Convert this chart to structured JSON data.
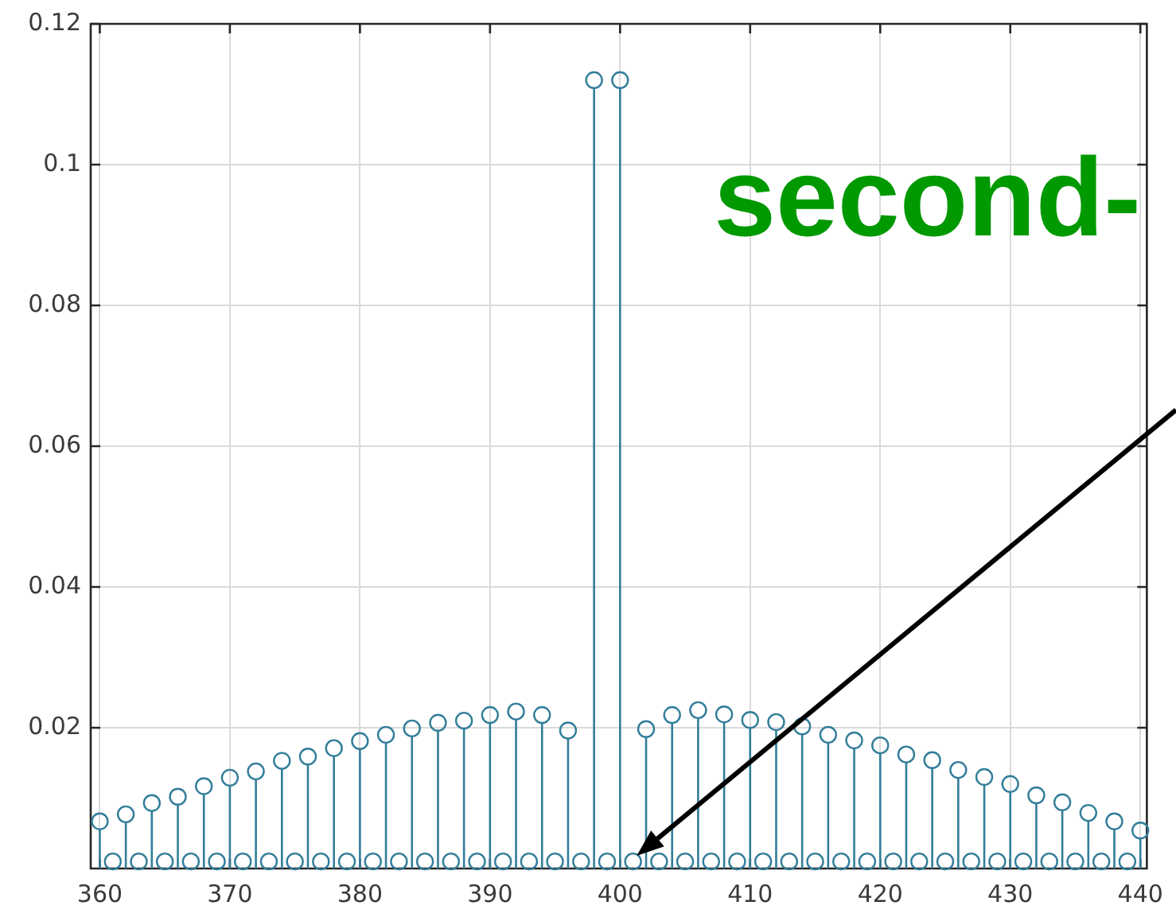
{
  "chart_data": {
    "type": "lollipop",
    "x": [
      360,
      361,
      362,
      363,
      364,
      365,
      366,
      367,
      368,
      369,
      370,
      371,
      372,
      373,
      374,
      375,
      376,
      377,
      378,
      379,
      380,
      381,
      382,
      383,
      384,
      385,
      386,
      387,
      388,
      389,
      390,
      391,
      392,
      393,
      394,
      395,
      396,
      397,
      398,
      399,
      400,
      401,
      402,
      403,
      404,
      405,
      406,
      407,
      408,
      409,
      410,
      411,
      412,
      413,
      414,
      415,
      416,
      417,
      418,
      419,
      420,
      421,
      422,
      423,
      424,
      425,
      426,
      427,
      428,
      429,
      430,
      431,
      432,
      433,
      434,
      435,
      436,
      437,
      438,
      439,
      440
    ],
    "values": [
      0.0067,
      0.001,
      0.0077,
      0.001,
      0.0093,
      0.001,
      0.0102,
      0.001,
      0.0117,
      0.001,
      0.0129,
      0.001,
      0.0138,
      0.001,
      0.0153,
      0.001,
      0.0159,
      0.001,
      0.0171,
      0.001,
      0.0181,
      0.001,
      0.019,
      0.001,
      0.0199,
      0.001,
      0.0207,
      0.001,
      0.021,
      0.001,
      0.0218,
      0.001,
      0.0223,
      0.001,
      0.0218,
      0.001,
      0.0196,
      0.001,
      0.112,
      0.001,
      0.112,
      0.001,
      0.0198,
      0.001,
      0.0218,
      0.001,
      0.0225,
      0.001,
      0.0219,
      0.001,
      0.0211,
      0.001,
      0.0208,
      0.001,
      0.0202,
      0.001,
      0.019,
      0.001,
      0.0182,
      0.001,
      0.0175,
      0.001,
      0.0162,
      0.001,
      0.0154,
      0.001,
      0.014,
      0.001,
      0.013,
      0.001,
      0.012,
      0.001,
      0.0104,
      0.001,
      0.0094,
      0.001,
      0.0079,
      0.001,
      0.0067,
      0.001,
      0.0054
    ],
    "color": "#327d9a",
    "xlim": [
      359.3,
      440.5
    ],
    "ylim": [
      0,
      0.12
    ],
    "xticks": [
      360,
      370,
      380,
      390,
      400,
      410,
      420,
      430,
      440
    ],
    "yticks": [
      0.02,
      0.04,
      0.06,
      0.08,
      0.1,
      0.12
    ],
    "grid": true,
    "marker": "circle",
    "annotations": [
      "second-"
    ]
  }
}
